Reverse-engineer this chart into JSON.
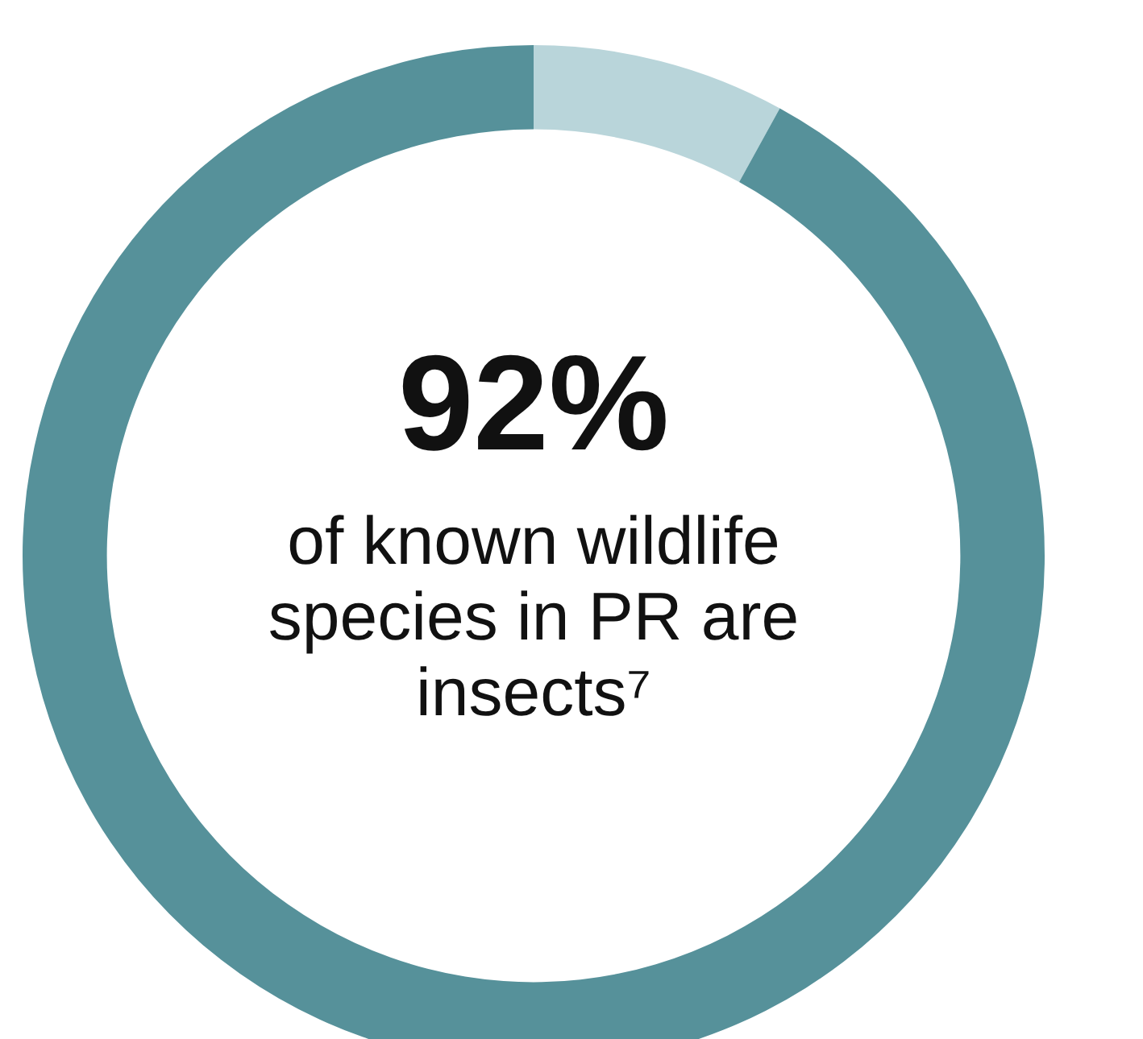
{
  "chart_data": {
    "type": "donut",
    "categories": [
      null,
      null
    ],
    "values": [
      8,
      92
    ],
    "colors": [
      "#b9d5da",
      "#56919a"
    ],
    "annotations": [
      "92%",
      "of known wildlife species in PR are insects⁷"
    ]
  }
}
